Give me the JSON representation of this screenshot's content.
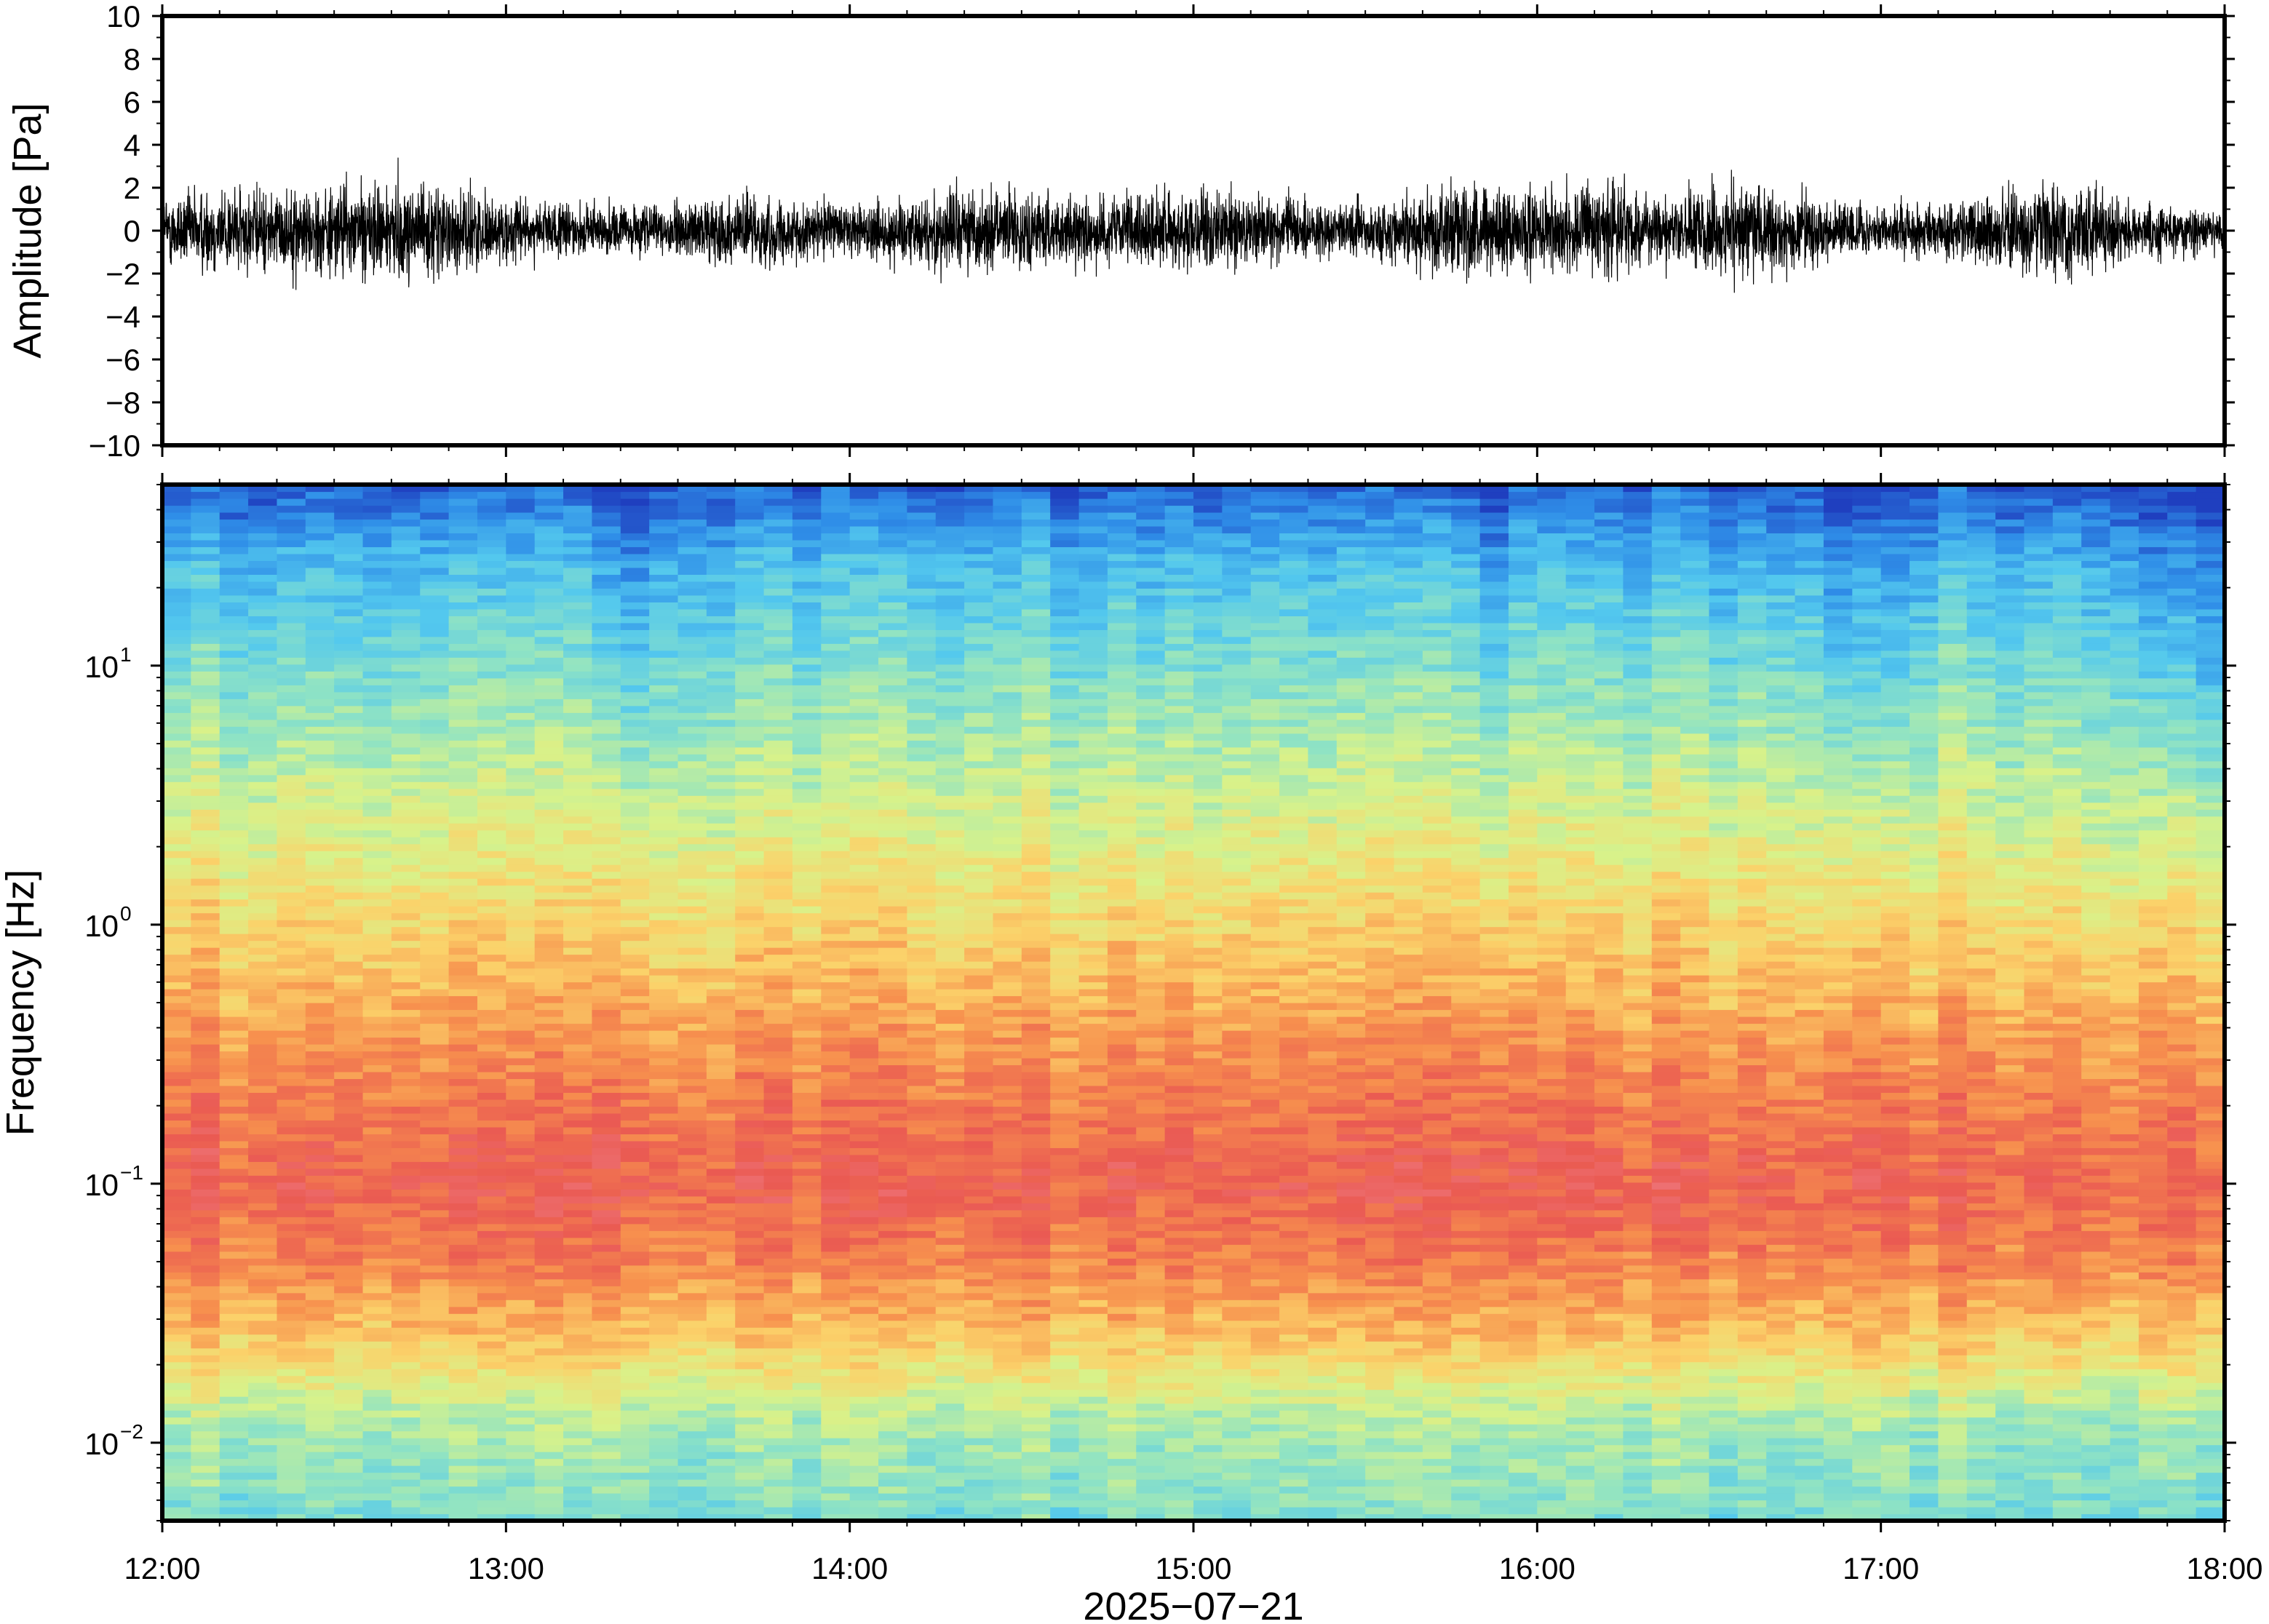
{
  "chart_data": [
    {
      "type": "line",
      "panel": "waveform",
      "ylabel": "Amplitude [Pa]",
      "ylim": [
        -10,
        10
      ],
      "yticks": [
        -10,
        -8,
        -6,
        -4,
        -2,
        0,
        2,
        4,
        6,
        8,
        10
      ],
      "ytick_labels": [
        "−10",
        "−8",
        "−6",
        "−4",
        "−2",
        "0",
        "2",
        "4",
        "6",
        "8",
        "10"
      ],
      "xlim": [
        "12:00",
        "18:00"
      ],
      "series": [
        {
          "x": [
            "12:00",
            "12:10",
            "12:20",
            "12:30",
            "12:40",
            "12:50",
            "13:00",
            "13:10",
            "13:20",
            "13:30",
            "13:40",
            "13:50",
            "14:00",
            "14:10",
            "14:20",
            "14:30",
            "14:40",
            "14:50",
            "15:00",
            "15:10",
            "15:20",
            "15:30",
            "15:40",
            "15:50",
            "16:00",
            "16:10",
            "16:20",
            "16:30",
            "16:40",
            "16:50",
            "17:00",
            "17:10",
            "17:20",
            "17:30",
            "17:40",
            "17:50",
            "18:00"
          ],
          "envelope_max": [
            1.8,
            2.3,
            2.0,
            2.4,
            2.6,
            2.0,
            1.8,
            1.4,
            1.3,
            1.5,
            1.8,
            1.6,
            1.5,
            1.6,
            2.2,
            1.9,
            1.7,
            1.8,
            2.3,
            1.9,
            1.5,
            1.4,
            2.2,
            2.3,
            2.1,
            2.6,
            1.9,
            2.1,
            1.9,
            1.7,
            1.3,
            1.5,
            1.8,
            2.4,
            1.9,
            1.3,
            1.0
          ],
          "envelope_min": [
            -1.9,
            -2.4,
            -2.2,
            -2.3,
            -3.0,
            -2.2,
            -1.7,
            -1.4,
            -1.3,
            -1.5,
            -1.7,
            -1.6,
            -1.6,
            -1.7,
            -2.4,
            -2.1,
            -1.8,
            -1.8,
            -2.0,
            -1.8,
            -1.5,
            -1.4,
            -2.5,
            -2.8,
            -2.2,
            -2.4,
            -1.8,
            -2.0,
            -3.3,
            -1.7,
            -1.3,
            -1.5,
            -2.0,
            -2.3,
            -1.8,
            -1.3,
            -1.0
          ]
        }
      ]
    },
    {
      "type": "heatmap",
      "panel": "spectrogram",
      "ylabel": "Frequency [Hz]",
      "yscale": "log",
      "ylim": [
        0.005,
        50
      ],
      "yticks": [
        0.01,
        0.1,
        1,
        10
      ],
      "ytick_labels": [
        {
          "base": "10",
          "exp": "−2"
        },
        {
          "base": "10",
          "exp": "−1"
        },
        {
          "base": "10",
          "exp": "0"
        },
        {
          "base": "10",
          "exp": "1"
        }
      ],
      "xlim": [
        "12:00",
        "18:00"
      ],
      "xticks": [
        "12:00",
        "13:00",
        "14:00",
        "15:00",
        "16:00",
        "17:00",
        "18:00"
      ],
      "xlabel": "2025−07−21",
      "colormap": "rainbow (blue = low power, red = high power)",
      "colormap_stops": [
        "#1f3fbf",
        "#2f8ee8",
        "#53c8ee",
        "#8fe3c4",
        "#d8f28a",
        "#fbd26a",
        "#f7914e",
        "#ea5a52",
        "#f0808a"
      ],
      "time_windows": 72,
      "power_profile_over_frequency": [
        {
          "freq": 0.005,
          "level": 0.34
        },
        {
          "freq": 0.012,
          "level": 0.42
        },
        {
          "freq": 0.025,
          "level": 0.64
        },
        {
          "freq": 0.05,
          "level": 0.78
        },
        {
          "freq": 0.1,
          "level": 0.86
        },
        {
          "freq": 0.25,
          "level": 0.78
        },
        {
          "freq": 0.6,
          "level": 0.67
        },
        {
          "freq": 1.5,
          "level": 0.56
        },
        {
          "freq": 4,
          "level": 0.45
        },
        {
          "freq": 10,
          "level": 0.34
        },
        {
          "freq": 25,
          "level": 0.22
        },
        {
          "freq": 50,
          "level": 0.05
        }
      ],
      "quiet_periods_high_freq": [
        "13:15-13:25",
        "15:50-15:55",
        "16:50-17:05",
        "17:45-18:00"
      ]
    }
  ]
}
